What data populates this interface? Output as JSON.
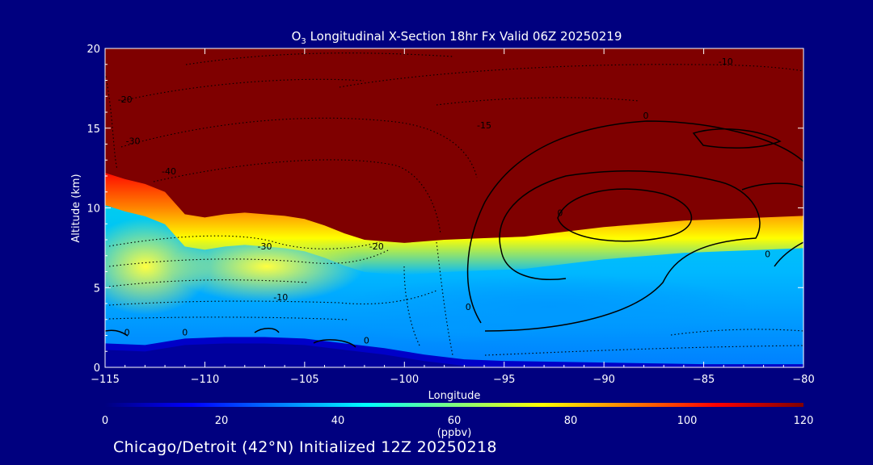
{
  "chart_data": {
    "type": "heatmap",
    "title_prefix": "O",
    "title_subscript": "3",
    "title_rest": " Longitudinal X-Section 18hr  Fx Valid 06Z 20250219",
    "xlabel": "Longitude",
    "ylabel": "Altitude (km)",
    "xlim": [
      -115,
      -80
    ],
    "ylim": [
      0,
      20
    ],
    "x_ticks": [
      -115,
      -110,
      -105,
      -100,
      -95,
      -90,
      -85,
      -80
    ],
    "x_tick_labels": [
      "−115",
      "−110",
      "−105",
      "−100",
      "−95",
      "−90",
      "−85",
      "−80"
    ],
    "y_ticks": [
      0,
      5,
      10,
      15,
      20
    ],
    "y_tick_labels": [
      "0",
      "5",
      "10",
      "15",
      "20"
    ],
    "colorbar": {
      "label": "(ppbv)",
      "range": [
        0,
        120
      ],
      "ticks": [
        0,
        20,
        40,
        60,
        80,
        100,
        120
      ],
      "tick_labels": [
        "0",
        "20",
        "40",
        "60",
        "80",
        "100",
        "120"
      ],
      "colors": [
        "#00007f",
        "#0000ff",
        "#007fff",
        "#00ffff",
        "#7fff7f",
        "#ffff00",
        "#ff7f00",
        "#ff0000",
        "#7f0000"
      ]
    },
    "tropopause_altitude_km": {
      "longitude": [
        -115,
        -114,
        -113,
        -112,
        -111,
        -110,
        -109,
        -108,
        -107,
        -106,
        -105,
        -104,
        -103,
        -102,
        -101,
        -100,
        -98,
        -96,
        -94,
        -92,
        -90,
        -88,
        -86,
        -84,
        -82,
        -80
      ],
      "altitude": [
        12.2,
        11.8,
        11.5,
        11.0,
        9.6,
        9.4,
        9.6,
        9.7,
        9.6,
        9.5,
        9.3,
        8.9,
        8.4,
        8.0,
        7.9,
        7.8,
        8.0,
        8.1,
        8.2,
        8.5,
        8.8,
        9.0,
        9.2,
        9.3,
        9.4,
        9.5
      ]
    },
    "surface_altitude_km": {
      "longitude": [
        -115,
        -113,
        -111,
        -109,
        -107,
        -105,
        -103,
        -101,
        -99,
        -97,
        -95,
        -90,
        -85,
        -80
      ],
      "altitude": [
        1.5,
        1.4,
        1.8,
        1.9,
        1.9,
        1.8,
        1.5,
        1.2,
        0.8,
        0.5,
        0.4,
        0.3,
        0.2,
        0.2
      ]
    },
    "contour_labels": [
      {
        "text": "-20",
        "lon": -114.0,
        "alt": 16.6
      },
      {
        "text": "-30",
        "lon": -113.6,
        "alt": 14.0
      },
      {
        "text": "-40",
        "lon": -111.8,
        "alt": 12.1
      },
      {
        "text": "-15",
        "lon": -96.0,
        "alt": 15.0
      },
      {
        "text": "-10",
        "lon": -83.9,
        "alt": 19.0
      },
      {
        "text": "0",
        "lon": -87.9,
        "alt": 15.6
      },
      {
        "text": "0",
        "lon": -92.2,
        "alt": 9.5
      },
      {
        "text": "-30",
        "lon": -107.0,
        "alt": 7.4
      },
      {
        "text": "-20",
        "lon": -101.4,
        "alt": 7.4
      },
      {
        "text": "-10",
        "lon": -106.2,
        "alt": 4.2
      },
      {
        "text": "0",
        "lon": -96.8,
        "alt": 3.6
      },
      {
        "text": "0",
        "lon": -113.9,
        "alt": 2.0
      },
      {
        "text": "0",
        "lon": -111.0,
        "alt": 2.0
      },
      {
        "text": "0",
        "lon": -101.9,
        "alt": 1.5
      },
      {
        "text": "0",
        "lon": -81.8,
        "alt": 6.9
      }
    ]
  },
  "footer_text": "Chicago/Detroit (42°N) Initialized 12Z 20250218"
}
